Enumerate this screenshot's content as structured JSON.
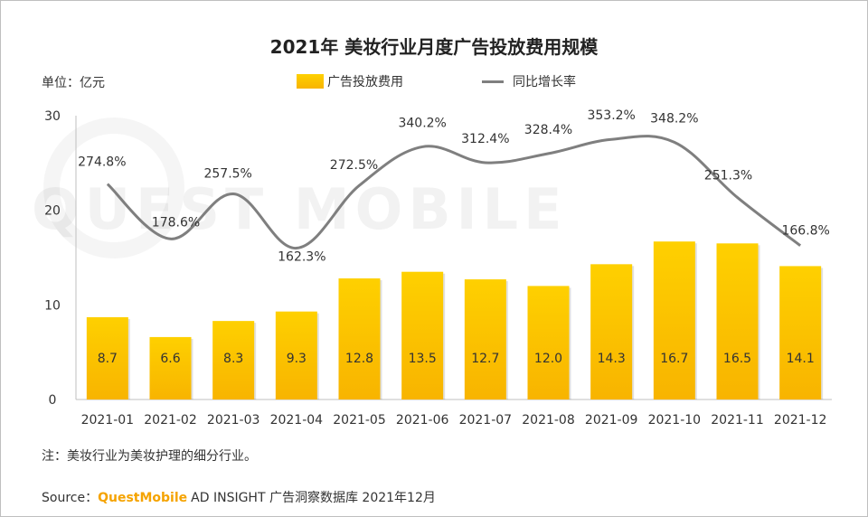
{
  "title": "2021年 美妆行业月度广告投放费用规模",
  "unit_label": "单位：亿元",
  "legend": {
    "bar_label": "广告投放费用",
    "line_label": "同比增长率"
  },
  "watermark": "QUEST MOBILE",
  "note": "注：美妆行业为美妆护理的细分行业。",
  "source": {
    "prefix": "Source：",
    "brand": "QuestMobile",
    "text": "AD INSIGHT 广告洞察数据库 2021年12月"
  },
  "colors": {
    "bar_top": "#fed000",
    "bar_bottom": "#f8b400",
    "line": "#7f7f7f",
    "brand": "#f5a300"
  },
  "chart_data": {
    "type": "bar",
    "categories": [
      "2021-01",
      "2021-02",
      "2021-03",
      "2021-04",
      "2021-05",
      "2021-06",
      "2021-07",
      "2021-08",
      "2021-09",
      "2021-10",
      "2021-11",
      "2021-12"
    ],
    "series": [
      {
        "name": "广告投放费用",
        "type": "bar",
        "values": [
          8.7,
          6.6,
          8.3,
          9.3,
          12.8,
          13.5,
          12.7,
          12.0,
          14.3,
          16.7,
          16.5,
          14.1
        ],
        "labels": [
          "8.7",
          "6.6",
          "8.3",
          "9.3",
          "12.8",
          "13.5",
          "12.7",
          "12.0",
          "14.3",
          "16.7",
          "16.5",
          "14.1"
        ]
      },
      {
        "name": "同比增长率",
        "type": "line",
        "values": [
          274.8,
          178.6,
          257.5,
          162.3,
          272.5,
          340.2,
          312.4,
          328.4,
          353.2,
          348.2,
          251.3,
          166.8
        ],
        "labels": [
          "274.8%",
          "178.6%",
          "257.5%",
          "162.3%",
          "272.5%",
          "340.2%",
          "312.4%",
          "328.4%",
          "353.2%",
          "348.2%",
          "251.3%",
          "166.8%"
        ]
      }
    ],
    "ylim": [
      0,
      30
    ],
    "yticks": [
      "0",
      "10",
      "20",
      "30"
    ],
    "grid": false,
    "legend_position": "top"
  }
}
